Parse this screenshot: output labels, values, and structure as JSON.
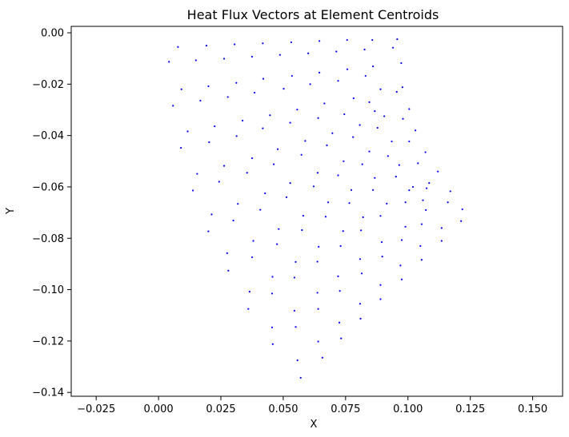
{
  "chart_data": {
    "type": "scatter",
    "title": "Heat Flux Vectors at Element Centroids",
    "xlabel": "X",
    "ylabel": "Y",
    "xlim": [
      -0.035,
      0.162
    ],
    "ylim": [
      -0.1415,
      0.0025
    ],
    "xticks": [
      -0.025,
      0.0,
      0.025,
      0.05,
      0.075,
      0.1,
      0.125,
      0.15
    ],
    "xtick_labels": [
      "−0.025",
      "0.000",
      "0.025",
      "0.050",
      "0.075",
      "0.100",
      "0.125",
      "0.150"
    ],
    "yticks": [
      0.0,
      -0.02,
      -0.04,
      -0.06,
      -0.08,
      -0.1,
      -0.12,
      -0.14
    ],
    "ytick_labels": [
      "0.00",
      "−0.02",
      "−0.04",
      "−0.06",
      "−0.08",
      "−0.10",
      "−0.12",
      "−0.14"
    ],
    "grid": false,
    "point_color": "#0000ff",
    "series": [
      {
        "points": [
          [
            0.0042,
            -0.0113
          ],
          [
            0.0078,
            -0.0055
          ],
          [
            0.015,
            -0.0107
          ],
          [
            0.0192,
            -0.005
          ],
          [
            0.0263,
            -0.0101
          ],
          [
            0.0305,
            -0.0045
          ],
          [
            0.0375,
            -0.0093
          ],
          [
            0.0418,
            -0.0041
          ],
          [
            0.0487,
            -0.0086
          ],
          [
            0.0532,
            -0.0037
          ],
          [
            0.06,
            -0.008
          ],
          [
            0.0645,
            -0.0032
          ],
          [
            0.0713,
            -0.0073
          ],
          [
            0.0756,
            -0.0028
          ],
          [
            0.0826,
            -0.0065
          ],
          [
            0.0857,
            -0.0028
          ],
          [
            0.094,
            -0.0058
          ],
          [
            0.0957,
            -0.0025
          ],
          [
            0.0973,
            -0.0118
          ],
          [
            0.0058,
            -0.0284
          ],
          [
            0.0092,
            -0.022
          ],
          [
            0.0168,
            -0.0264
          ],
          [
            0.02,
            -0.0208
          ],
          [
            0.0278,
            -0.025
          ],
          [
            0.0312,
            -0.0195
          ],
          [
            0.0385,
            -0.0233
          ],
          [
            0.042,
            -0.0179
          ],
          [
            0.0502,
            -0.0218
          ],
          [
            0.0535,
            -0.0168
          ],
          [
            0.0608,
            -0.02
          ],
          [
            0.0645,
            -0.0155
          ],
          [
            0.072,
            -0.0187
          ],
          [
            0.0757,
            -0.0142
          ],
          [
            0.083,
            -0.0168
          ],
          [
            0.086,
            -0.0131
          ],
          [
            0.0955,
            -0.023
          ],
          [
            0.0978,
            -0.0212
          ],
          [
            0.009,
            -0.0448
          ],
          [
            0.0117,
            -0.0384
          ],
          [
            0.0203,
            -0.0426
          ],
          [
            0.0225,
            -0.0364
          ],
          [
            0.0313,
            -0.0402
          ],
          [
            0.0337,
            -0.0342
          ],
          [
            0.0418,
            -0.0372
          ],
          [
            0.0447,
            -0.0321
          ],
          [
            0.0528,
            -0.035
          ],
          [
            0.0556,
            -0.0299
          ],
          [
            0.064,
            -0.0332
          ],
          [
            0.0665,
            -0.0275
          ],
          [
            0.0745,
            -0.0317
          ],
          [
            0.0782,
            -0.0255
          ],
          [
            0.0867,
            -0.0305
          ],
          [
            0.0845,
            -0.027
          ],
          [
            0.098,
            -0.0335
          ],
          [
            0.1005,
            -0.0297
          ],
          [
            0.089,
            -0.022
          ],
          [
            0.0138,
            -0.0614
          ],
          [
            0.0155,
            -0.0549
          ],
          [
            0.0243,
            -0.058
          ],
          [
            0.0263,
            -0.0518
          ],
          [
            0.0355,
            -0.0545
          ],
          [
            0.0375,
            -0.0488
          ],
          [
            0.0462,
            -0.0512
          ],
          [
            0.0478,
            -0.0453
          ],
          [
            0.0573,
            -0.0475
          ],
          [
            0.0588,
            -0.0421
          ],
          [
            0.0675,
            -0.0438
          ],
          [
            0.0697,
            -0.0391
          ],
          [
            0.078,
            -0.0406
          ],
          [
            0.0807,
            -0.0359
          ],
          [
            0.0878,
            -0.037
          ],
          [
            0.0905,
            -0.0325
          ],
          [
            0.1005,
            -0.0423
          ],
          [
            0.103,
            -0.038
          ],
          [
            0.02,
            -0.0773
          ],
          [
            0.0213,
            -0.0707
          ],
          [
            0.03,
            -0.0731
          ],
          [
            0.0318,
            -0.0666
          ],
          [
            0.0408,
            -0.0689
          ],
          [
            0.0427,
            -0.0625
          ],
          [
            0.0513,
            -0.064
          ],
          [
            0.0528,
            -0.0585
          ],
          [
            0.0622,
            -0.0598
          ],
          [
            0.0638,
            -0.0545
          ],
          [
            0.072,
            -0.0555
          ],
          [
            0.0742,
            -0.05
          ],
          [
            0.0817,
            -0.0512
          ],
          [
            0.0845,
            -0.0462
          ],
          [
            0.092,
            -0.048
          ],
          [
            0.0935,
            -0.0423
          ],
          [
            0.104,
            -0.0508
          ],
          [
            0.107,
            -0.0465
          ],
          [
            0.1085,
            -0.0585
          ],
          [
            0.112,
            -0.054
          ],
          [
            0.028,
            -0.0926
          ],
          [
            0.0275,
            -0.0858
          ],
          [
            0.0375,
            -0.0874
          ],
          [
            0.038,
            -0.081
          ],
          [
            0.0475,
            -0.0823
          ],
          [
            0.0482,
            -0.0764
          ],
          [
            0.0575,
            -0.0768
          ],
          [
            0.058,
            -0.0712
          ],
          [
            0.067,
            -0.0716
          ],
          [
            0.068,
            -0.066
          ],
          [
            0.0765,
            -0.0663
          ],
          [
            0.0773,
            -0.0612
          ],
          [
            0.086,
            -0.0612
          ],
          [
            0.0867,
            -0.0565
          ],
          [
            0.0952,
            -0.056
          ],
          [
            0.0965,
            -0.0515
          ],
          [
            0.102,
            -0.06
          ],
          [
            0.106,
            -0.0652
          ],
          [
            0.1075,
            -0.0605
          ],
          [
            0.036,
            -0.1075
          ],
          [
            0.0365,
            -0.1008
          ],
          [
            0.0455,
            -0.1015
          ],
          [
            0.0457,
            -0.095
          ],
          [
            0.0545,
            -0.0953
          ],
          [
            0.055,
            -0.0892
          ],
          [
            0.0637,
            -0.0891
          ],
          [
            0.0642,
            -0.0833
          ],
          [
            0.073,
            -0.083
          ],
          [
            0.074,
            -0.0772
          ],
          [
            0.0812,
            -0.0769
          ],
          [
            0.082,
            -0.0718
          ],
          [
            0.089,
            -0.0713
          ],
          [
            0.0915,
            -0.0665
          ],
          [
            0.099,
            -0.066
          ],
          [
            0.1005,
            -0.0613
          ],
          [
            0.0458,
            -0.1212
          ],
          [
            0.0455,
            -0.1147
          ],
          [
            0.055,
            -0.1145
          ],
          [
            0.0545,
            -0.1082
          ],
          [
            0.064,
            -0.1075
          ],
          [
            0.0637,
            -0.1012
          ],
          [
            0.0727,
            -0.1005
          ],
          [
            0.072,
            -0.0948
          ],
          [
            0.0815,
            -0.0937
          ],
          [
            0.0808,
            -0.0881
          ],
          [
            0.0897,
            -0.0871
          ],
          [
            0.0895,
            -0.0815
          ],
          [
            0.0975,
            -0.0807
          ],
          [
            0.099,
            -0.0755
          ],
          [
            0.1055,
            -0.0745
          ],
          [
            0.1072,
            -0.069
          ],
          [
            0.057,
            -0.1343
          ],
          [
            0.0557,
            -0.1275
          ],
          [
            0.0657,
            -0.1265
          ],
          [
            0.064,
            -0.1202
          ],
          [
            0.0732,
            -0.119
          ],
          [
            0.0725,
            -0.1128
          ],
          [
            0.081,
            -0.1113
          ],
          [
            0.0808,
            -0.1055
          ],
          [
            0.089,
            -0.1037
          ],
          [
            0.089,
            -0.0982
          ],
          [
            0.0975,
            -0.096
          ],
          [
            0.097,
            -0.0906
          ],
          [
            0.1055,
            -0.0884
          ],
          [
            0.105,
            -0.083
          ],
          [
            0.1135,
            -0.081
          ],
          [
            0.1135,
            -0.076
          ],
          [
            0.117,
            -0.0617
          ],
          [
            0.116,
            -0.066
          ],
          [
            0.1213,
            -0.0733
          ],
          [
            0.1218,
            -0.0687
          ]
        ]
      }
    ]
  }
}
